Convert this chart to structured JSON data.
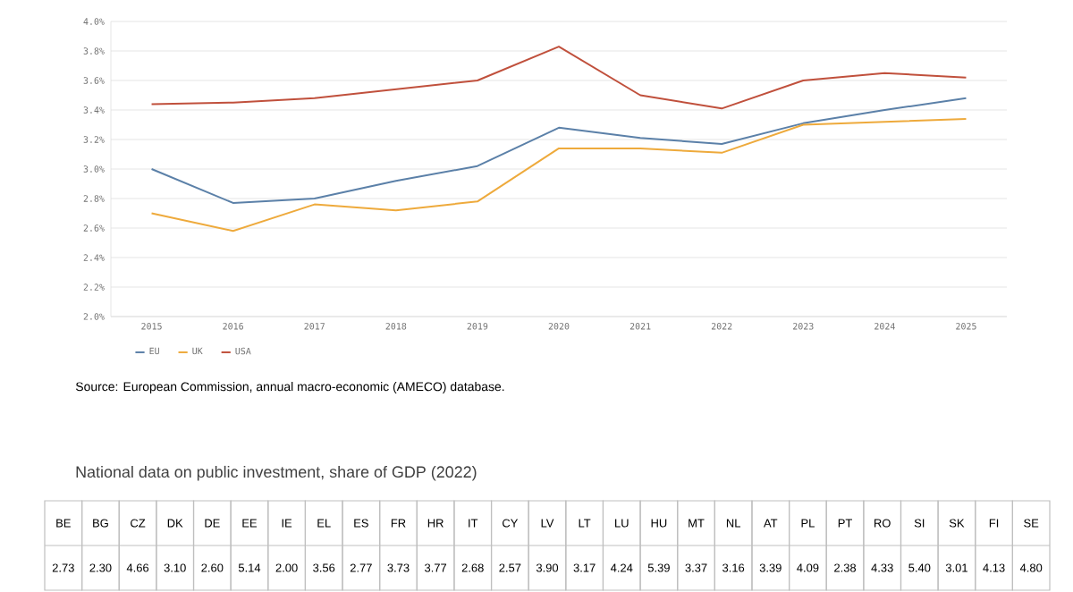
{
  "chart_data": [
    {
      "type": "line",
      "categories": [
        "2015",
        "2016",
        "2017",
        "2018",
        "2019",
        "2020",
        "2021",
        "2022",
        "2023",
        "2024",
        "2025"
      ],
      "series": [
        {
          "name": "EU",
          "color": "#5b80a8",
          "values": [
            3.0,
            2.77,
            2.8,
            2.92,
            3.02,
            3.28,
            3.21,
            3.17,
            3.31,
            3.4,
            3.48
          ]
        },
        {
          "name": "UK",
          "color": "#eeaa3c",
          "values": [
            2.7,
            2.58,
            2.76,
            2.72,
            2.78,
            3.14,
            3.14,
            3.11,
            3.3,
            3.32,
            3.34
          ]
        },
        {
          "name": "USA",
          "color": "#c0503c",
          "values": [
            3.44,
            3.45,
            3.48,
            3.54,
            3.6,
            3.83,
            3.5,
            3.41,
            3.6,
            3.65,
            3.62
          ]
        }
      ],
      "ylim": [
        2.0,
        4.0
      ],
      "yticks": [
        {
          "value": 2.0,
          "label": "2.0%"
        },
        {
          "value": 2.2,
          "label": "2.2%"
        },
        {
          "value": 2.4,
          "label": "2.4%"
        },
        {
          "value": 2.6,
          "label": "2.6%"
        },
        {
          "value": 2.8,
          "label": "2.8%"
        },
        {
          "value": 3.0,
          "label": "3.0%"
        },
        {
          "value": 3.2,
          "label": "3.2%"
        },
        {
          "value": 3.4,
          "label": "3.4%"
        },
        {
          "value": 3.6,
          "label": "3.6%"
        },
        {
          "value": 3.8,
          "label": "3.8%"
        },
        {
          "value": 4.0,
          "label": "4.0%"
        }
      ],
      "grid": "y",
      "legend": "bottom left",
      "marker": "none",
      "line_style": "solid",
      "annotations": [
        "Source: European Commission, annual macro-economic (AMECO) database."
      ]
    },
    {
      "type": "other",
      "title": "National data on public investment, share of GDP (2022)",
      "categories": [
        "BE",
        "BG",
        "CZ",
        "DK",
        "DE",
        "EE",
        "IE",
        "EL",
        "ES",
        "FR",
        "HR",
        "IT",
        "CY",
        "LV",
        "LT",
        "LU",
        "HU",
        "MT",
        "NL",
        "AT",
        "PL",
        "PT",
        "RO",
        "SI",
        "SK",
        "FI",
        "SE"
      ],
      "value_labels": [
        "2.73",
        "2.30",
        "4.66",
        "3.10",
        "2.60",
        "5.14",
        "2.00",
        "3.56",
        "2.77",
        "3.73",
        "3.77",
        "2.68",
        "2.57",
        "3.90",
        "3.17",
        "4.24",
        "5.39",
        "3.37",
        "3.16",
        "3.39",
        "4.09",
        "2.38",
        "4.33",
        "5.40",
        "3.01",
        "4.13",
        "4.80"
      ]
    }
  ]
}
